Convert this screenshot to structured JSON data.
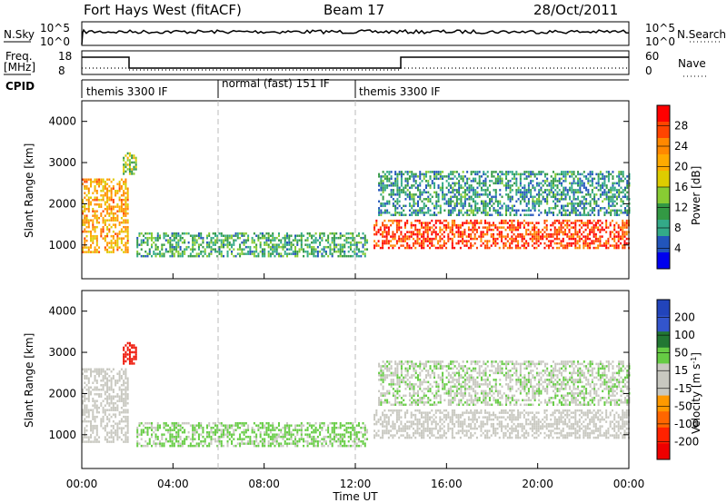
{
  "header": {
    "station": "Fort Hays West (fitACF)",
    "beam": "Beam 17",
    "date": "28/Oct/2011"
  },
  "top_panels": {
    "nsky_label": "N.Sky",
    "nsky_ticks": [
      "10^5",
      "10^0"
    ],
    "nsearch_label": "N.Search",
    "nsearch_ticks": [
      "10^5",
      "10^0"
    ],
    "freq_label_1": "Freq.",
    "freq_label_2": "[MHz]",
    "freq_ticks": [
      "18",
      "8"
    ],
    "nave_label": "Nave",
    "nave_ticks": [
      "60",
      "0"
    ],
    "cpid_label": "CPID",
    "cpid_segments": [
      {
        "label": "themis 3300 IF",
        "start_hour": 0,
        "end_hour": 6
      },
      {
        "label": "normal (fast) 151 IF",
        "start_hour": 6,
        "end_hour": 12
      },
      {
        "label": "themis 3300 IF",
        "start_hour": 12,
        "end_hour": 24
      }
    ]
  },
  "x_axis": {
    "label": "Time UT",
    "ticks": [
      "00:00",
      "04:00",
      "08:00",
      "12:00",
      "16:00",
      "20:00",
      "00:00"
    ]
  },
  "power_panel": {
    "ylabel": "Slant Range [km]",
    "yticks": [
      "4000",
      "3000",
      "2000",
      "1000"
    ],
    "colorbar_label": "Power [dB]",
    "colorbar_ticks": [
      "28",
      "24",
      "20",
      "16",
      "12",
      "8",
      "4"
    ],
    "colors": [
      "#ff0000",
      "#ff4400",
      "#ff8800",
      "#ffaa00",
      "#ddcc00",
      "#88cc33",
      "#339944",
      "#33aa88",
      "#2255bb",
      "#0000ee"
    ]
  },
  "velocity_panel": {
    "ylabel": "Slant Range [km]",
    "yticks": [
      "4000",
      "3000",
      "2000",
      "1000"
    ],
    "colorbar_label": "Velocity [m s^-1]",
    "colorbar_ticks": [
      "200",
      "100",
      "50",
      "15",
      "-15",
      "-50",
      "-100",
      "-200"
    ],
    "colors": [
      "#2244bb",
      "#3355cc",
      "#227733",
      "#66cc44",
      "#c8c8c0",
      "#c8c8c0",
      "#ff9900",
      "#ff6600",
      "#ff2200",
      "#ee0000"
    ]
  },
  "chart_data": {
    "type": "heatmap",
    "title": "Fort Hays West (fitACF)  Beam 17  28/Oct/2011",
    "xlabel": "Time UT",
    "ylabel": "Slant Range [km]",
    "xlim_hours": [
      0,
      24
    ],
    "ylim_km": [
      180,
      4500
    ],
    "power_range_db": [
      0,
      30
    ],
    "velocity_range": [
      -200,
      200
    ],
    "echo_regions": [
      {
        "start_hour": 0.0,
        "end_hour": 2.0,
        "min_km": 800,
        "max_km": 2600,
        "power_db": 20,
        "velocity": 0
      },
      {
        "start_hour": 1.8,
        "end_hour": 2.4,
        "min_km": 2700,
        "max_km": 3200,
        "power_db": 14,
        "velocity": -220
      },
      {
        "start_hour": 2.4,
        "end_hour": 12.5,
        "min_km": 700,
        "max_km": 1300,
        "power_db": 10,
        "velocity": 20
      },
      {
        "start_hour": 12.8,
        "end_hour": 24.0,
        "min_km": 900,
        "max_km": 1600,
        "power_db": 26,
        "velocity": 0
      },
      {
        "start_hour": 13.0,
        "end_hour": 24.0,
        "min_km": 1700,
        "max_km": 2800,
        "power_db": 8,
        "velocity": 10
      }
    ]
  }
}
